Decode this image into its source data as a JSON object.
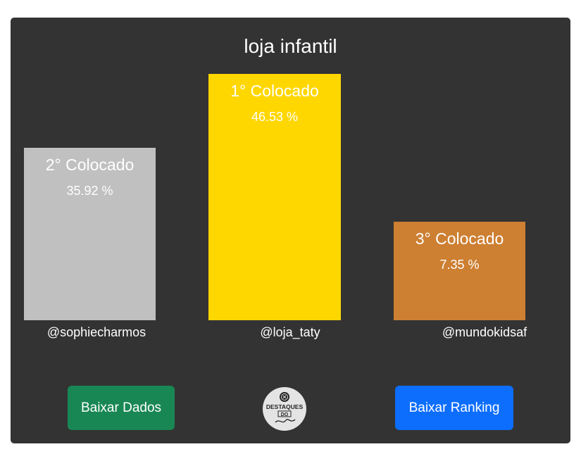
{
  "header": {
    "title": "loja infantil"
  },
  "podium": [
    {
      "place_label": "2° Colocado",
      "percent_label": "35.92 %",
      "handle": "@sophiecharmos",
      "color": "#c0c0c0"
    },
    {
      "place_label": "1° Colocado",
      "percent_label": "46.53 %",
      "handle": "@loja_taty",
      "color": "#ffd700"
    },
    {
      "place_label": "3° Colocado",
      "percent_label": "7.35 %",
      "handle": "@mundokidsaf",
      "color": "#cd7f32"
    }
  ],
  "actions": {
    "download_data_label": "Baixar Dados",
    "download_data_color": "#198754",
    "download_ranking_label": "Baixar Ranking",
    "download_ranking_color": "#0d6efd"
  },
  "logo": {
    "icon": "destaques-logo-icon",
    "text_top": "DESTAQUES",
    "text_bottom": "DO"
  }
}
